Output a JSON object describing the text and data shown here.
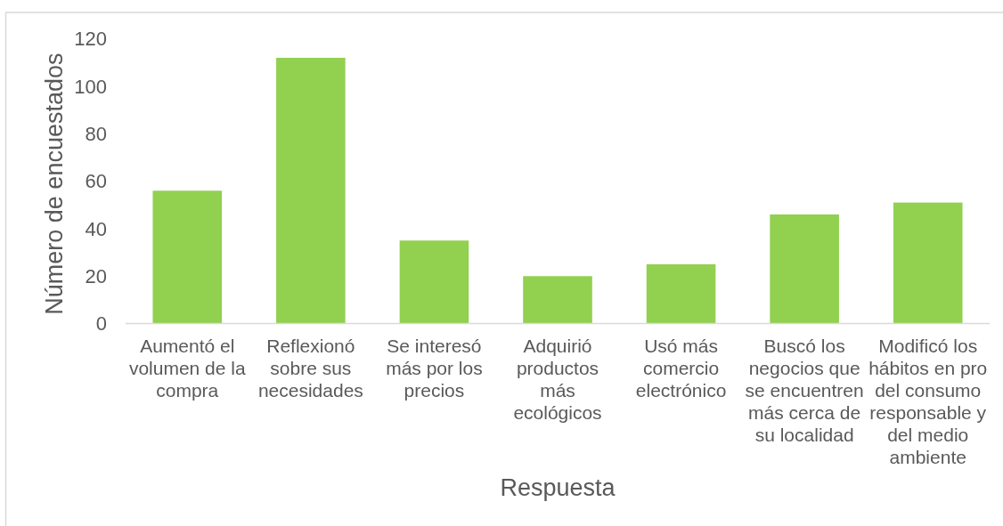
{
  "chart_data": {
    "type": "bar",
    "xlabel": "Respuesta",
    "ylabel": "Número de encuestados",
    "categories": [
      "Aumentó el volumen de la compra",
      "Reflexionó sobre sus necesidades",
      "Se interesó más por los precios",
      "Adquirió productos más ecológicos",
      "Usó más comercio electrónico",
      "Buscó los negocios que se encuentren más cerca de su localidad",
      "Modificó los hábitos en pro del consumo responsable y del medio ambiente"
    ],
    "values": [
      56,
      112,
      35,
      20,
      25,
      46,
      51
    ],
    "color": "#92d050",
    "ylim": [
      0,
      120
    ],
    "yticks": [
      0,
      20,
      40,
      60,
      80,
      100,
      120
    ]
  }
}
